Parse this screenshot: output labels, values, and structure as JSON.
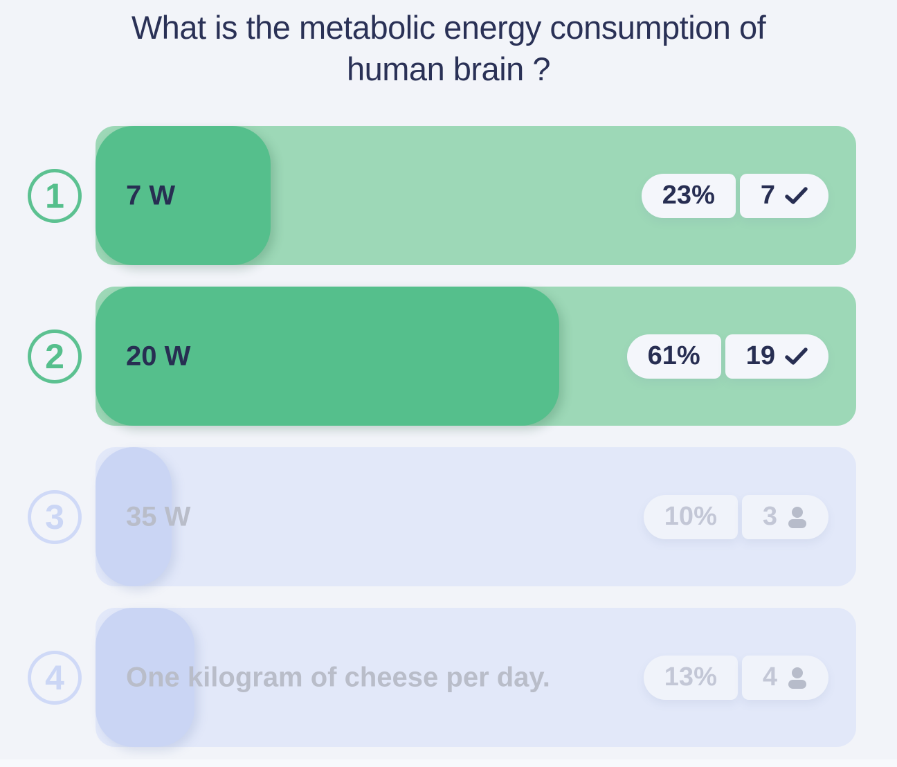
{
  "question": {
    "line1": "What is the metabolic energy consumption of",
    "line2": "human brain ?"
  },
  "rows": [
    {
      "number": "1",
      "label": "7 W",
      "percent": "23%",
      "count": "7",
      "icon": "check-icon",
      "state": "correct-green"
    },
    {
      "number": "2",
      "label": "20 W",
      "percent": "61%",
      "count": "19",
      "icon": "check-icon",
      "state": "correct-green"
    },
    {
      "number": "3",
      "label": "35 W",
      "percent": "10%",
      "count": "3",
      "icon": "person-icon",
      "state": "unselected-lavender"
    },
    {
      "number": "4",
      "label": "One kilogram of cheese per day.",
      "percent": "13%",
      "count": "4",
      "icon": "person-icon",
      "state": "unselected-lavender"
    }
  ],
  "colors": {
    "background": "#f2f4f9",
    "title_navy": "#2a3156",
    "answer_navy": "#272e52",
    "green_fill": "#55bf8c",
    "green_track": "#9dd8b7",
    "lavender_fill": "#cad5f4",
    "lavender_track": "#e2e8f9",
    "muted_text": "#b9bdc9",
    "pill_background": "#f4f6fb"
  }
}
